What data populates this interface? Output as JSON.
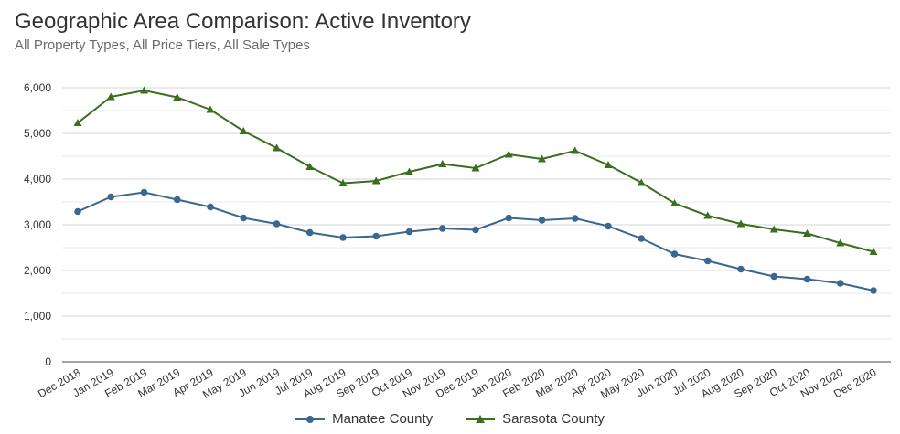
{
  "title": "Geographic Area Comparison: Active Inventory",
  "subtitle": "All Property Types, All Price Tiers, All Sale Types",
  "colors": {
    "manatee": "#3a678f",
    "sarasota": "#3b6e1f",
    "grid": "#d4d4d4",
    "axis": "#444444"
  },
  "chart_data": {
    "type": "line",
    "title": "Geographic Area Comparison: Active Inventory",
    "subtitle": "All Property Types, All Price Tiers, All Sale Types",
    "xlabel": "",
    "ylabel": "",
    "ylim": [
      0,
      6000
    ],
    "y_ticks": [
      0,
      1000,
      2000,
      3000,
      4000,
      5000,
      6000
    ],
    "y_tick_labels": [
      "0",
      "1,000",
      "2,000",
      "3,000",
      "4,000",
      "5,000",
      "6,000"
    ],
    "grid": true,
    "legend_position": "bottom",
    "categories": [
      "Dec 2018",
      "Jan 2019",
      "Feb 2019",
      "Mar 2019",
      "Apr 2019",
      "May 2019",
      "Jun 2019",
      "Jul 2019",
      "Aug 2019",
      "Sep 2019",
      "Oct 2019",
      "Nov 2019",
      "Dec 2019",
      "Jan 2020",
      "Feb 2020",
      "Mar 2020",
      "Apr 2020",
      "May 2020",
      "Jun 2020",
      "Jul 2020",
      "Aug 2020",
      "Sep 2020",
      "Oct 2020",
      "Nov 2020",
      "Dec 2020"
    ],
    "series": [
      {
        "name": "Manatee County",
        "marker": "circle",
        "values": [
          3290,
          3610,
          3710,
          3550,
          3390,
          3150,
          3020,
          2830,
          2720,
          2750,
          2850,
          2920,
          2890,
          3150,
          3100,
          3140,
          2970,
          2700,
          2360,
          2210,
          2030,
          1870,
          1810,
          1720,
          1560
        ]
      },
      {
        "name": "Sarasota County",
        "marker": "triangle",
        "values": [
          5230,
          5800,
          5940,
          5790,
          5520,
          5050,
          4680,
          4270,
          3910,
          3960,
          4160,
          4330,
          4240,
          4540,
          4440,
          4620,
          4310,
          3920,
          3470,
          3200,
          3020,
          2900,
          2810,
          2600,
          2410
        ]
      }
    ]
  }
}
